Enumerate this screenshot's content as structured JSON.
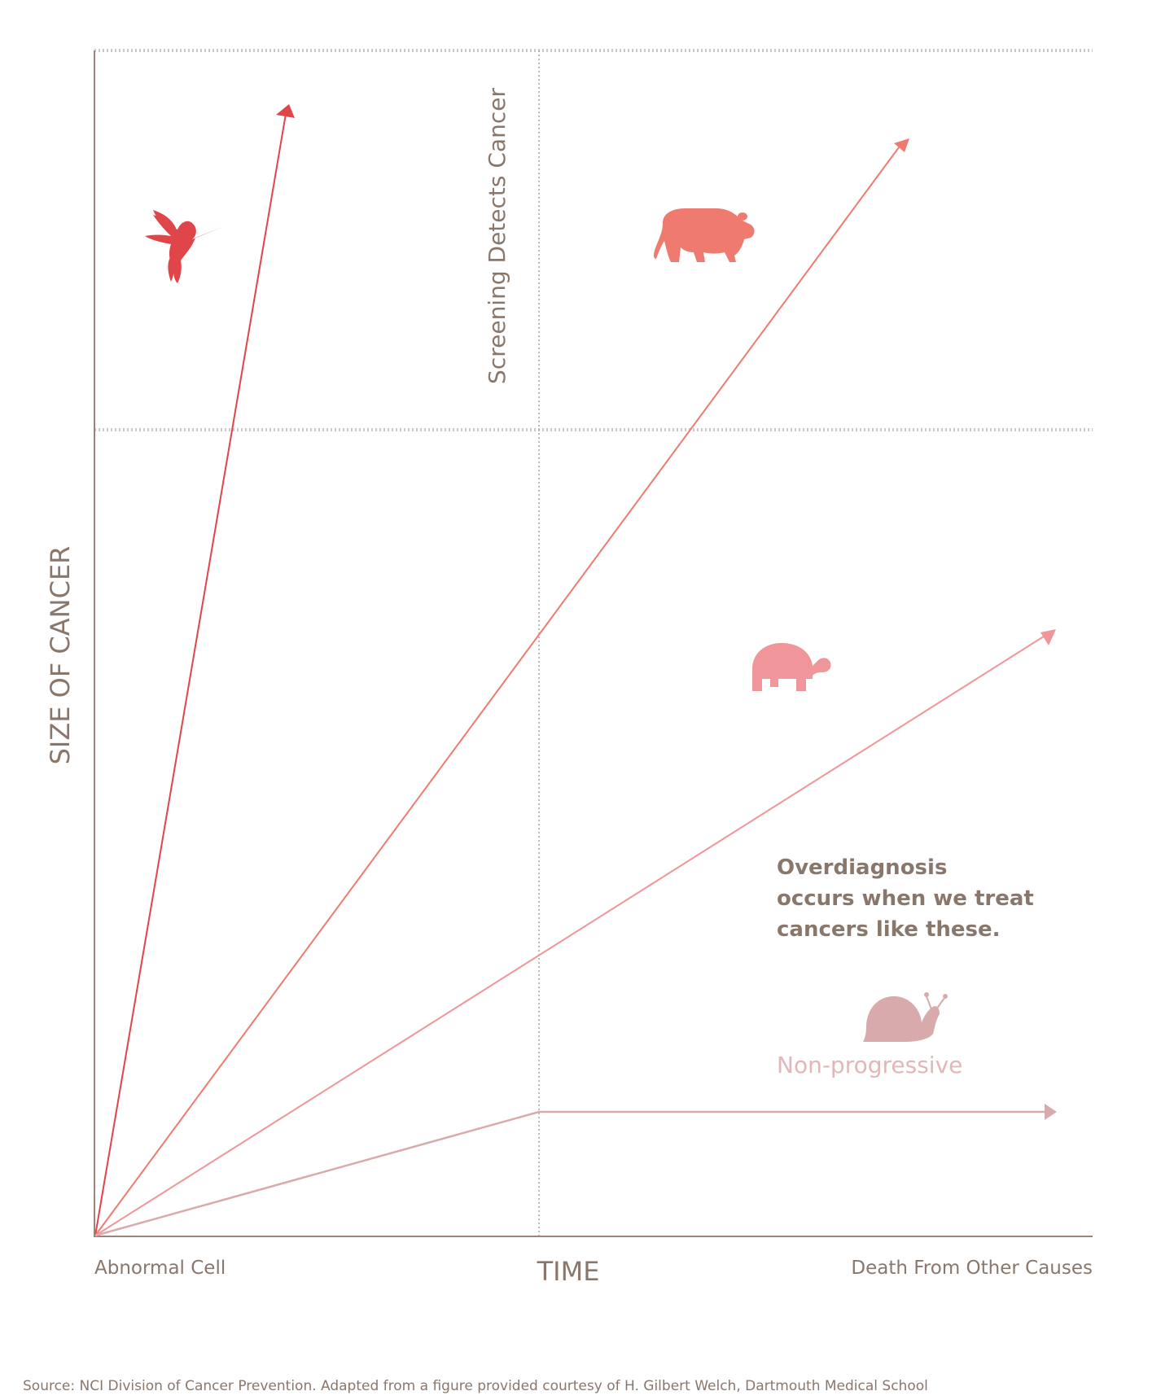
{
  "axes": {
    "y_label": "SIZE OF CANCER",
    "x_label": "TIME",
    "x_start_label": "Abnormal Cell",
    "x_end_label": "Death From Other Causes"
  },
  "screening_label": "Screening Detects Cancer",
  "overdiagnosis_lines": [
    "Overdiagnosis",
    "occurs when we treat",
    "cancers like these."
  ],
  "non_progressive_label": "Non-progressive",
  "source": "Source: NCI Division of Cancer Prevention.  Adapted from a figure provided courtesy of H. Gilbert Welch, Dartmouth Medical School",
  "colors": {
    "axis": "#9a8479",
    "text": "#8a776c",
    "fast": "#e0454a",
    "medium": "#ef7a70",
    "slow": "#f0959a",
    "nonprogressive": "#d9aaab",
    "grid": "#c8c8c8"
  },
  "icons": {
    "fast": "hummingbird-icon",
    "medium": "bear-icon",
    "slow": "turtle-icon",
    "nonprogressive": "snail-icon"
  }
}
